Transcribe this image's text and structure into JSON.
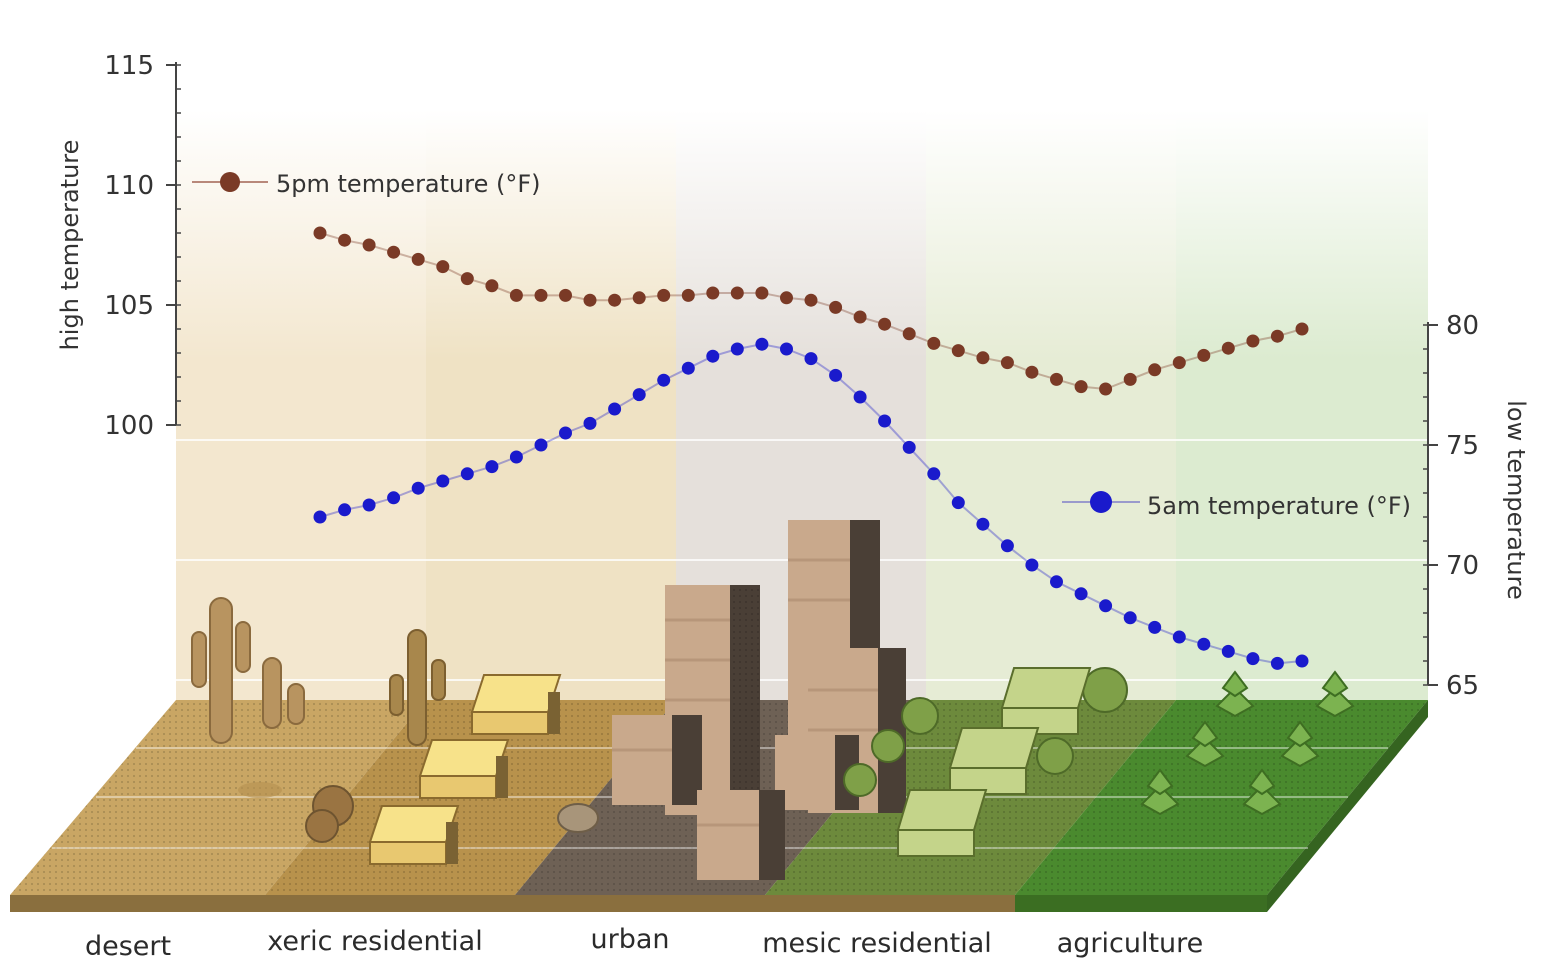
{
  "chart_data": {
    "type": "line",
    "title": "",
    "categories": [
      "desert",
      "xeric residential",
      "urban",
      "mesic residential",
      "agriculture"
    ],
    "left_axis": {
      "label": "high temperature",
      "range": [
        97,
        115
      ],
      "ticks": [
        "100",
        "105",
        "110",
        "115"
      ]
    },
    "right_axis": {
      "label": "low temperature",
      "range": [
        65,
        80
      ],
      "ticks": [
        "65",
        "70",
        "75",
        "80"
      ]
    },
    "series": [
      {
        "name": "5pm temperature (°F)",
        "axis": "left",
        "color": "#7a3a26",
        "x": [
          0.0,
          0.025,
          0.05,
          0.075,
          0.1,
          0.125,
          0.15,
          0.175,
          0.2,
          0.225,
          0.25,
          0.275,
          0.3,
          0.325,
          0.35,
          0.375,
          0.4,
          0.425,
          0.45,
          0.475,
          0.5,
          0.525,
          0.55,
          0.575,
          0.6,
          0.625,
          0.65,
          0.675,
          0.7,
          0.725,
          0.75,
          0.775,
          0.8,
          0.825,
          0.85,
          0.875,
          0.9,
          0.925,
          0.95,
          0.975,
          1.0
        ],
        "values": [
          108.0,
          107.7,
          107.5,
          107.2,
          106.9,
          106.6,
          106.1,
          105.8,
          105.4,
          105.4,
          105.4,
          105.2,
          105.2,
          105.3,
          105.4,
          105.4,
          105.5,
          105.5,
          105.5,
          105.3,
          105.2,
          104.9,
          104.5,
          104.2,
          103.8,
          103.4,
          103.1,
          102.8,
          102.6,
          102.2,
          101.9,
          101.6,
          101.5,
          101.9,
          102.3,
          102.6,
          102.9,
          103.2,
          103.5,
          103.7,
          104.0
        ]
      },
      {
        "name": "5am temperature (°F)",
        "axis": "right",
        "color": "#1a1acc",
        "x": [
          0.0,
          0.025,
          0.05,
          0.075,
          0.1,
          0.125,
          0.15,
          0.175,
          0.2,
          0.225,
          0.25,
          0.275,
          0.3,
          0.325,
          0.35,
          0.375,
          0.4,
          0.425,
          0.45,
          0.475,
          0.5,
          0.525,
          0.55,
          0.575,
          0.6,
          0.625,
          0.65,
          0.675,
          0.7,
          0.725,
          0.75,
          0.775,
          0.8,
          0.825,
          0.85,
          0.875,
          0.9,
          0.925,
          0.95,
          0.975,
          1.0
        ],
        "values": [
          72.0,
          72.3,
          72.5,
          72.8,
          73.2,
          73.5,
          73.8,
          74.1,
          74.5,
          75.0,
          75.5,
          75.9,
          76.5,
          77.1,
          77.7,
          78.2,
          78.7,
          79.0,
          79.2,
          79.0,
          78.6,
          77.9,
          77.0,
          76.0,
          74.9,
          73.8,
          72.6,
          71.7,
          70.8,
          70.0,
          69.3,
          68.8,
          68.3,
          67.8,
          67.4,
          67.0,
          66.7,
          66.4,
          66.1,
          65.9,
          66.0
        ]
      }
    ],
    "legend": [
      {
        "label": "5pm temperature (°F)",
        "placement": "top-left"
      },
      {
        "label": "5am temperature (°F)",
        "placement": "right"
      }
    ],
    "grid": true,
    "zone_colors": {
      "desert": "#c9a664",
      "xeric residential": "#b8924c",
      "urban": "#6e6155",
      "mesic residential": "#6d8a3c",
      "agriculture": "#4a8a2e"
    }
  }
}
